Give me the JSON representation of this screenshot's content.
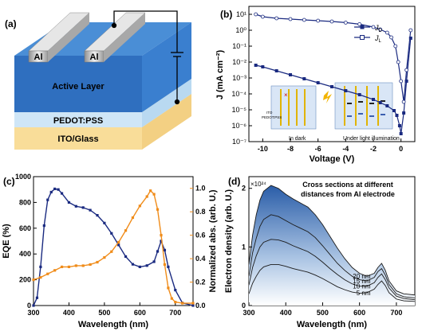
{
  "panels": {
    "a": {
      "label": "(a)",
      "layers": {
        "electrode": "Al",
        "active": "Active Layer",
        "htl": "PEDOT:PSS",
        "substrate": "ITO/Glass"
      }
    },
    "b": {
      "label": "(b)"
    },
    "c": {
      "label": "(c)"
    },
    "d": {
      "label": "(d)"
    }
  },
  "chart_data": [
    {
      "panel": "b",
      "type": "line",
      "xlabel": "Voltage (V)",
      "ylabel": "J (mA cm⁻²)",
      "xlim": [
        -11,
        1
      ],
      "ylim_log10": [
        -7,
        1.5
      ],
      "yscale": "log",
      "x_ticks": [
        -10,
        -8,
        -6,
        -4,
        -2,
        0
      ],
      "y_ticks": [
        {
          "v": -7,
          "t": "10⁻⁷"
        },
        {
          "v": -6,
          "t": "10⁻⁶"
        },
        {
          "v": -5,
          "t": "10⁻⁵"
        },
        {
          "v": -4,
          "t": "10⁻⁴"
        },
        {
          "v": -3,
          "t": "10⁻³"
        },
        {
          "v": -2,
          "t": "10⁻²"
        },
        {
          "v": -1,
          "t": "10⁻¹"
        },
        {
          "v": 0,
          "t": "10⁰"
        },
        {
          "v": 1,
          "t": "10¹"
        }
      ],
      "legend": "top-right",
      "inset_labels": [
        "ITO",
        "PEDOT:PSS",
        "In dark",
        "Under light illumination"
      ],
      "series": [
        {
          "name": "J_D",
          "legend_main": "J",
          "legend_sub": "D",
          "marker": "filled",
          "color": "#1a2a80",
          "x": [
            -10.5,
            -10,
            -9,
            -8,
            -7,
            -6,
            -5,
            -4,
            -3,
            -2,
            -1.5,
            -1,
            -0.5,
            -0.3,
            -0.1,
            0,
            0.2,
            0.4,
            0.7
          ],
          "log10y": [
            -2.2,
            -2.3,
            -2.55,
            -2.8,
            -3.05,
            -3.3,
            -3.55,
            -3.8,
            -4.05,
            -4.35,
            -4.55,
            -4.75,
            -5.05,
            -5.35,
            -6.0,
            -6.5,
            -5.2,
            -3.2,
            -0.5
          ]
        },
        {
          "name": "J_L",
          "legend_main": "J",
          "legend_sub": "L",
          "marker": "open",
          "color": "#1a2a80",
          "x": [
            -10.5,
            -10,
            -9,
            -8,
            -7,
            -6,
            -5,
            -4,
            -3,
            -2,
            -1.5,
            -1,
            -0.7,
            -0.4,
            -0.2,
            0,
            0.2,
            0.4,
            0.7
          ],
          "log10y": [
            1.0,
            0.85,
            0.75,
            0.7,
            0.65,
            0.6,
            0.55,
            0.48,
            0.38,
            0.2,
            0.05,
            -0.15,
            -0.45,
            -1.0,
            -2.0,
            -3.2,
            -4.5,
            -2.5,
            0.0
          ]
        }
      ]
    },
    {
      "panel": "c",
      "type": "line",
      "xlabel": "Wavelength (nm)",
      "ylabel_left": "EQE (%)",
      "ylabel_right": "Normalized abs. (arb. U.)",
      "xlim": [
        300,
        750
      ],
      "ylim_left": [
        0,
        1000
      ],
      "ylim_right": [
        0,
        1.1
      ],
      "x_ticks": [
        300,
        400,
        500,
        600,
        700
      ],
      "y_ticks_left": [
        0,
        200,
        400,
        600,
        800,
        1000
      ],
      "y_ticks_right": [
        "0.0",
        "0.2",
        "0.4",
        "0.6",
        "0.8",
        "1.0"
      ],
      "series": [
        {
          "name": "EQE",
          "axis": "left",
          "color": "#1a2a80",
          "x": [
            300,
            310,
            320,
            330,
            340,
            350,
            360,
            370,
            380,
            400,
            420,
            440,
            460,
            480,
            500,
            520,
            540,
            560,
            580,
            600,
            620,
            640,
            650,
            660,
            670,
            680,
            700,
            720,
            750
          ],
          "y": [
            0,
            60,
            300,
            620,
            820,
            880,
            905,
            900,
            870,
            800,
            770,
            760,
            740,
            700,
            640,
            560,
            470,
            380,
            320,
            300,
            310,
            340,
            420,
            500,
            430,
            300,
            120,
            20,
            0
          ]
        },
        {
          "name": "Abs",
          "axis": "right",
          "color": "#f08c1a",
          "x": [
            300,
            320,
            340,
            360,
            380,
            400,
            420,
            440,
            460,
            480,
            500,
            520,
            540,
            560,
            580,
            600,
            620,
            630,
            640,
            650,
            660,
            670,
            680,
            690,
            700,
            720,
            750
          ],
          "y": [
            0.22,
            0.24,
            0.27,
            0.3,
            0.33,
            0.33,
            0.34,
            0.34,
            0.35,
            0.37,
            0.41,
            0.46,
            0.54,
            0.64,
            0.75,
            0.85,
            0.93,
            0.98,
            0.95,
            0.82,
            0.6,
            0.35,
            0.15,
            0.06,
            0.03,
            0.02,
            0.02
          ]
        }
      ]
    },
    {
      "panel": "d",
      "type": "area",
      "xlabel": "Wavelength (nm)",
      "ylabel": "Electron density (arb. U.)",
      "exponent": "×10²⁴",
      "xlim": [
        300,
        750
      ],
      "ylim": [
        0,
        2.2
      ],
      "x_ticks": [
        300,
        400,
        500,
        600,
        700
      ],
      "y_ticks": [
        0,
        1,
        2
      ],
      "annotation": [
        "Cross sections at different",
        "distances from Al electrode"
      ],
      "x": [
        300,
        310,
        320,
        330,
        340,
        360,
        380,
        400,
        420,
        440,
        460,
        480,
        500,
        520,
        540,
        560,
        580,
        600,
        620,
        640,
        650,
        660,
        670,
        680,
        700,
        720,
        750
      ],
      "series": [
        {
          "name": "20 nm",
          "y": [
            0.7,
            1.2,
            1.55,
            1.8,
            1.95,
            2.05,
            2.0,
            1.9,
            1.82,
            1.75,
            1.68,
            1.55,
            1.38,
            1.18,
            0.98,
            0.8,
            0.65,
            0.55,
            0.5,
            0.55,
            0.65,
            0.72,
            0.6,
            0.42,
            0.25,
            0.2,
            0.18
          ]
        },
        {
          "name": "15 nm",
          "y": [
            0.5,
            0.9,
            1.15,
            1.35,
            1.47,
            1.55,
            1.52,
            1.45,
            1.38,
            1.32,
            1.26,
            1.16,
            1.02,
            0.87,
            0.72,
            0.6,
            0.5,
            0.44,
            0.42,
            0.48,
            0.58,
            0.63,
            0.52,
            0.36,
            0.2,
            0.15,
            0.13
          ]
        },
        {
          "name": "10 nm",
          "y": [
            0.35,
            0.65,
            0.85,
            1.0,
            1.08,
            1.13,
            1.12,
            1.08,
            1.02,
            0.97,
            0.92,
            0.84,
            0.74,
            0.63,
            0.53,
            0.44,
            0.37,
            0.33,
            0.33,
            0.39,
            0.48,
            0.54,
            0.44,
            0.3,
            0.16,
            0.12,
            0.1
          ]
        },
        {
          "name": "5 nm",
          "y": [
            0.2,
            0.38,
            0.5,
            0.6,
            0.66,
            0.7,
            0.7,
            0.67,
            0.63,
            0.6,
            0.57,
            0.52,
            0.46,
            0.39,
            0.32,
            0.27,
            0.23,
            0.21,
            0.22,
            0.28,
            0.36,
            0.42,
            0.34,
            0.22,
            0.11,
            0.08,
            0.07
          ]
        }
      ]
    }
  ]
}
